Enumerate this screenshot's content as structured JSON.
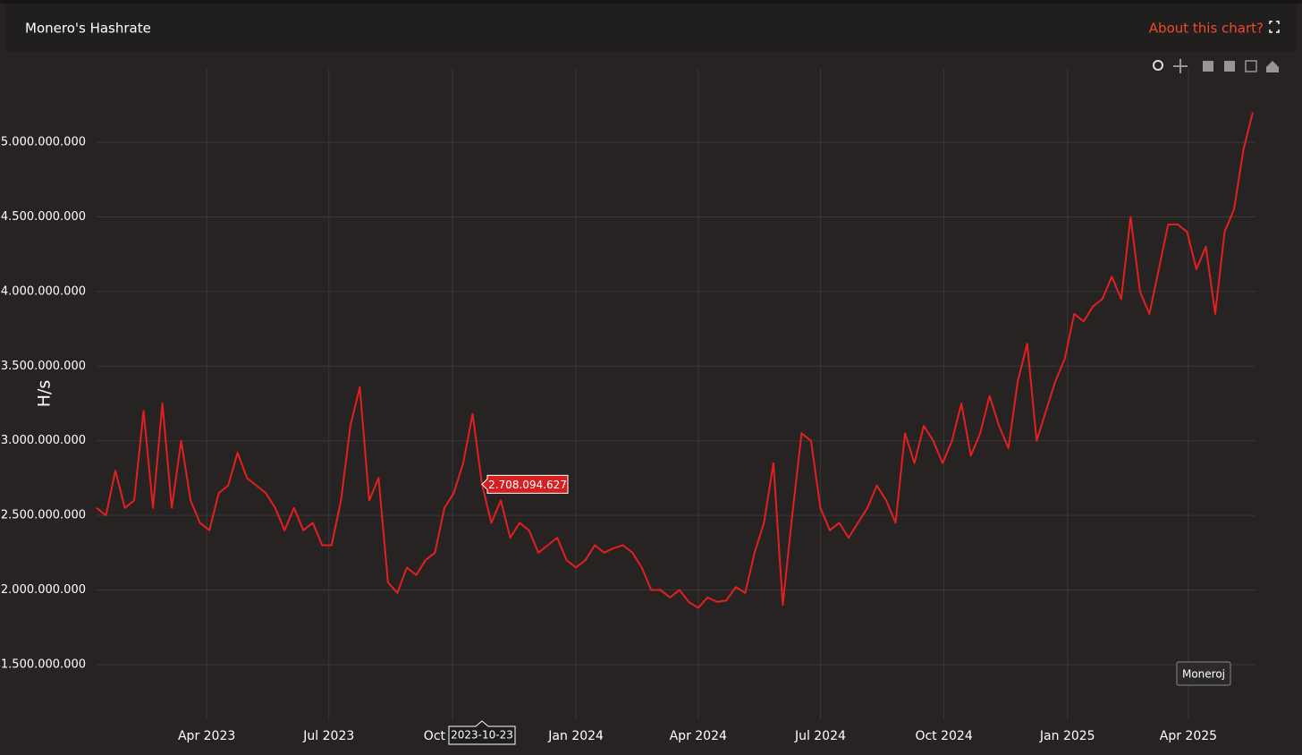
{
  "chart_data": {
    "type": "line",
    "title": "Monero's Hashrate",
    "link_text": "About this chart?",
    "y_label": "H/s",
    "x": [
      "2023-01-09",
      "2023-01-16",
      "2023-01-23",
      "2023-01-30",
      "2023-02-06",
      "2023-02-13",
      "2023-02-20",
      "2023-02-27",
      "2023-03-06",
      "2023-03-13",
      "2023-03-20",
      "2023-03-27",
      "2023-04-03",
      "2023-04-10",
      "2023-04-17",
      "2023-04-24",
      "2023-05-01",
      "2023-05-08",
      "2023-05-15",
      "2023-05-22",
      "2023-05-29",
      "2023-06-05",
      "2023-06-12",
      "2023-06-19",
      "2023-06-26",
      "2023-07-03",
      "2023-07-10",
      "2023-07-17",
      "2023-07-24",
      "2023-07-31",
      "2023-08-07",
      "2023-08-14",
      "2023-08-21",
      "2023-08-28",
      "2023-09-04",
      "2023-09-11",
      "2023-09-18",
      "2023-09-25",
      "2023-10-02",
      "2023-10-09",
      "2023-10-16",
      "2023-10-23",
      "2023-10-30",
      "2023-11-06",
      "2023-11-13",
      "2023-11-20",
      "2023-11-27",
      "2023-12-04",
      "2023-12-11",
      "2023-12-18",
      "2023-12-25",
      "2024-01-01",
      "2024-01-08",
      "2024-01-15",
      "2024-01-22",
      "2024-01-29",
      "2024-02-05",
      "2024-02-12",
      "2024-02-19",
      "2024-02-26",
      "2024-03-04",
      "2024-03-11",
      "2024-03-18",
      "2024-03-25",
      "2024-04-01",
      "2024-04-08",
      "2024-04-15",
      "2024-04-22",
      "2024-04-29",
      "2024-05-06",
      "2024-05-13",
      "2024-05-20",
      "2024-05-27",
      "2024-06-03",
      "2024-06-10",
      "2024-06-17",
      "2024-06-24",
      "2024-07-01",
      "2024-07-08",
      "2024-07-15",
      "2024-07-22",
      "2024-07-29",
      "2024-08-05",
      "2024-08-12",
      "2024-08-19",
      "2024-08-26",
      "2024-09-02",
      "2024-09-09",
      "2024-09-16",
      "2024-09-23",
      "2024-09-30",
      "2024-10-07",
      "2024-10-14",
      "2024-10-21",
      "2024-10-28",
      "2024-11-04",
      "2024-11-11",
      "2024-11-18",
      "2024-11-25",
      "2024-12-02",
      "2024-12-09",
      "2024-12-16",
      "2024-12-23",
      "2024-12-30",
      "2025-01-06",
      "2025-01-13",
      "2025-01-20",
      "2025-01-27",
      "2025-02-03",
      "2025-02-10",
      "2025-02-17",
      "2025-02-24",
      "2025-03-03",
      "2025-03-10",
      "2025-03-17",
      "2025-03-24",
      "2025-03-31",
      "2025-04-07",
      "2025-04-14",
      "2025-04-21",
      "2025-04-28",
      "2025-05-05",
      "2025-05-12",
      "2025-05-19"
    ],
    "series": [
      {
        "name": "Moneroj",
        "color": "#e3201f",
        "values": [
          2550000000,
          2500000000,
          2800000000,
          2550000000,
          2600000000,
          3200000000,
          2550000000,
          3250000000,
          2550000000,
          3000000000,
          2600000000,
          2450000000,
          2400000000,
          2650000000,
          2700000000,
          2920000000,
          2750000000,
          2700000000,
          2650000000,
          2550000000,
          2400000000,
          2550000000,
          2400000000,
          2450000000,
          2300000000,
          2300000000,
          2600000000,
          3100000000,
          3360000000,
          2600000000,
          2750000000,
          2050000000,
          1980000000,
          2150000000,
          2100000000,
          2200000000,
          2250000000,
          2550000000,
          2650000000,
          2850000000,
          3180000000,
          2708094627,
          2450000000,
          2600000000,
          2350000000,
          2450000000,
          2400000000,
          2250000000,
          2300000000,
          2350000000,
          2200000000,
          2150000000,
          2200000000,
          2300000000,
          2250000000,
          2280000000,
          2300000000,
          2250000000,
          2150000000,
          2000000000,
          2000000000,
          1950000000,
          2000000000,
          1920000000,
          1880000000,
          1950000000,
          1920000000,
          1930000000,
          2020000000,
          1980000000,
          2250000000,
          2450000000,
          2850000000,
          1900000000,
          2500000000,
          3050000000,
          3000000000,
          2550000000,
          2400000000,
          2450000000,
          2350000000,
          2450000000,
          2550000000,
          2700000000,
          2600000000,
          2450000000,
          3050000000,
          2850000000,
          3100000000,
          3000000000,
          2850000000,
          3000000000,
          3250000000,
          2900000000,
          3050000000,
          3300000000,
          3100000000,
          2950000000,
          3400000000,
          3650000000,
          3000000000,
          3200000000,
          3400000000,
          3550000000,
          3850000000,
          3800000000,
          3900000000,
          3950000000,
          4100000000,
          3950000000,
          4500000000,
          4000000000,
          3850000000,
          4150000000,
          4450000000,
          4450000000,
          4400000000,
          4150000000,
          4300000000,
          3850000000,
          4400000000,
          4550000000,
          4950000000,
          5200000000
        ]
      }
    ],
    "xlim": [
      "2023-01-09",
      "2025-05-21"
    ],
    "xticks": [
      {
        "value": "2023-04-01",
        "label": "Apr 2023"
      },
      {
        "value": "2023-07-01",
        "label": "Jul 2023"
      },
      {
        "value": "2023-10-01",
        "label": "Oct 2023"
      },
      {
        "value": "2024-01-01",
        "label": "Jan 2024"
      },
      {
        "value": "2024-04-01",
        "label": "Apr 2024"
      },
      {
        "value": "2024-07-01",
        "label": "Jul 2024"
      },
      {
        "value": "2024-10-01",
        "label": "Oct 2024"
      },
      {
        "value": "2025-01-01",
        "label": "Jan 2025"
      },
      {
        "value": "2025-04-01",
        "label": "Apr 2025"
      }
    ],
    "ylim": [
      1128000000,
      5492000000
    ],
    "yticks": [
      {
        "value": 1500000000,
        "label": "1.500.000.000"
      },
      {
        "value": 2000000000,
        "label": "2.000.000.000"
      },
      {
        "value": 2500000000,
        "label": "2.500.000.000"
      },
      {
        "value": 3000000000,
        "label": "3.000.000.000"
      },
      {
        "value": 3500000000,
        "label": "3.500.000.000"
      },
      {
        "value": 4000000000,
        "label": "4.000.000.000"
      },
      {
        "value": 4500000000,
        "label": "4.500.000.000"
      },
      {
        "value": 5000000000,
        "label": "5.000.000.000"
      }
    ],
    "grid": true,
    "tooltip": {
      "x": "2023-10-23",
      "value": 2708094627,
      "label": "2.708.094.627"
    }
  }
}
